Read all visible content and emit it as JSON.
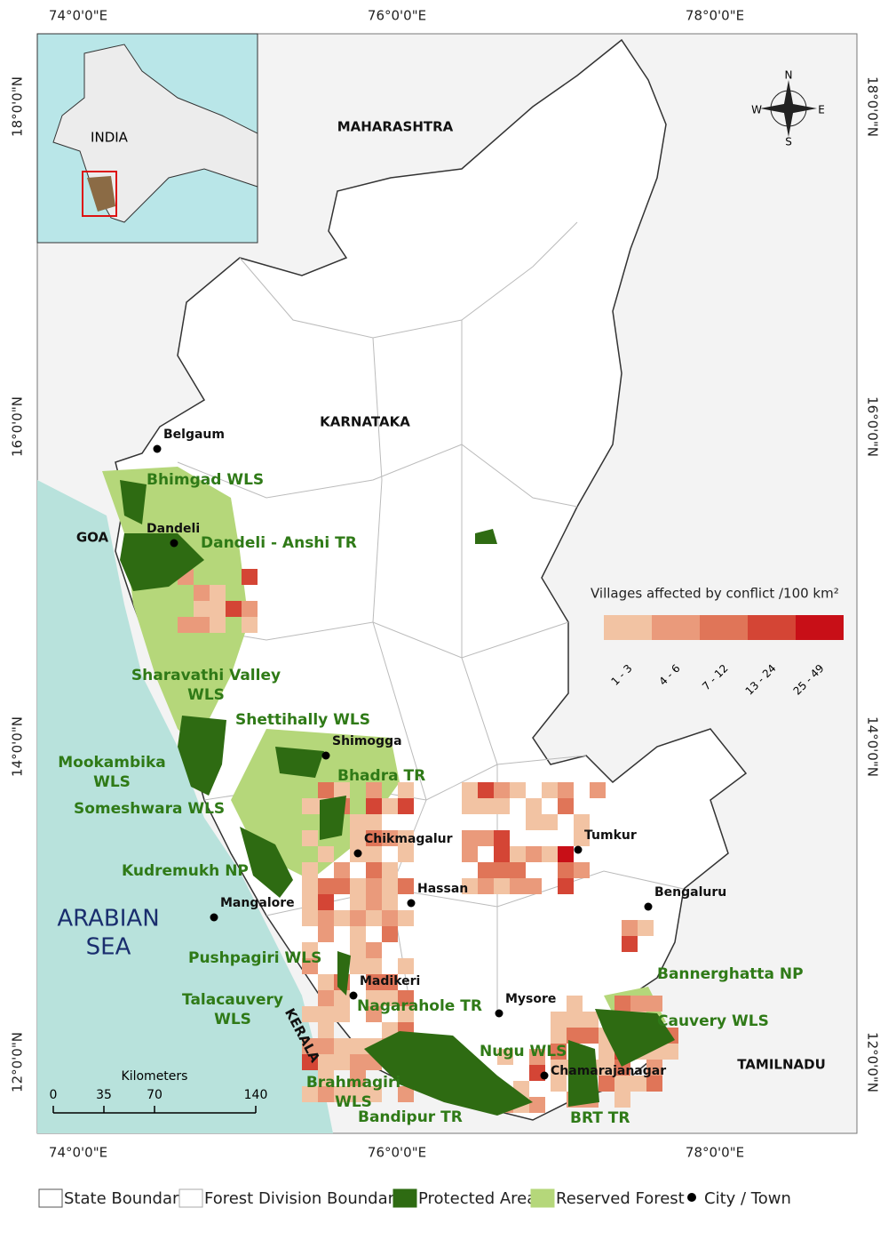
{
  "map": {
    "graticule": {
      "lon": [
        "74°0'0\"E",
        "76°0'0\"E",
        "78°0'0\"E"
      ],
      "lat": [
        "18°0'0\"N",
        "16°0'0\"N",
        "14°0'0\"N",
        "12°0'0\"N"
      ]
    },
    "inset_label": "INDIA",
    "compass": {
      "n": "N",
      "e": "E",
      "s": "S",
      "w": "W"
    },
    "regions": [
      "MAHARASHTRA",
      "KARNATAKA",
      "GOA",
      "KERALA",
      "TAMILNADU"
    ],
    "sea": [
      "ARABIAN",
      "SEA"
    ],
    "protected_areas": [
      [
        "Bhimgad WLS"
      ],
      [
        "Dandeli - Anshi TR"
      ],
      [
        "Sharavathi Valley",
        "WLS"
      ],
      [
        "Shettihally WLS"
      ],
      [
        "Mookambika",
        "WLS"
      ],
      [
        "Bhadra TR"
      ],
      [
        "Someshwara WLS"
      ],
      [
        "Kudremukh NP"
      ],
      [
        "Pushpagiri WLS"
      ],
      [
        "Talacauvery",
        "WLS"
      ],
      [
        "Nagarahole TR"
      ],
      [
        "Brahmagiri",
        "WLS"
      ],
      [
        "Bandipur TR"
      ],
      [
        "Nugu WLS"
      ],
      [
        "BRT TR"
      ],
      [
        "Cauvery WLS"
      ],
      [
        "Bannerghatta NP"
      ]
    ],
    "cities": [
      "Belgaum",
      "Dandeli",
      "Shimogga",
      "Chikmagalur",
      "Tumkur",
      "Hassan",
      "Bengaluru",
      "Mangalore",
      "Madikeri",
      "Mysore",
      "Chamarajanagar"
    ],
    "conflict_legend": {
      "title": "Villages affected by conflict /100 km²",
      "classes": [
        {
          "label": "1 - 3",
          "color": "#f2c3a3"
        },
        {
          "label": "4 - 6",
          "color": "#ea9a7b"
        },
        {
          "label": "7 - 12",
          "color": "#e07558"
        },
        {
          "label": "13 - 24",
          "color": "#d44535"
        },
        {
          "label": "25 - 49",
          "color": "#c80f17"
        }
      ]
    },
    "scale_bar": {
      "title": "Kilometers",
      "ticks": [
        0,
        35,
        70,
        140
      ]
    },
    "legend": [
      "State Boundary",
      "Forest Division Boundary",
      "Protected Area",
      "Reserved Forest",
      "City / Town"
    ]
  }
}
